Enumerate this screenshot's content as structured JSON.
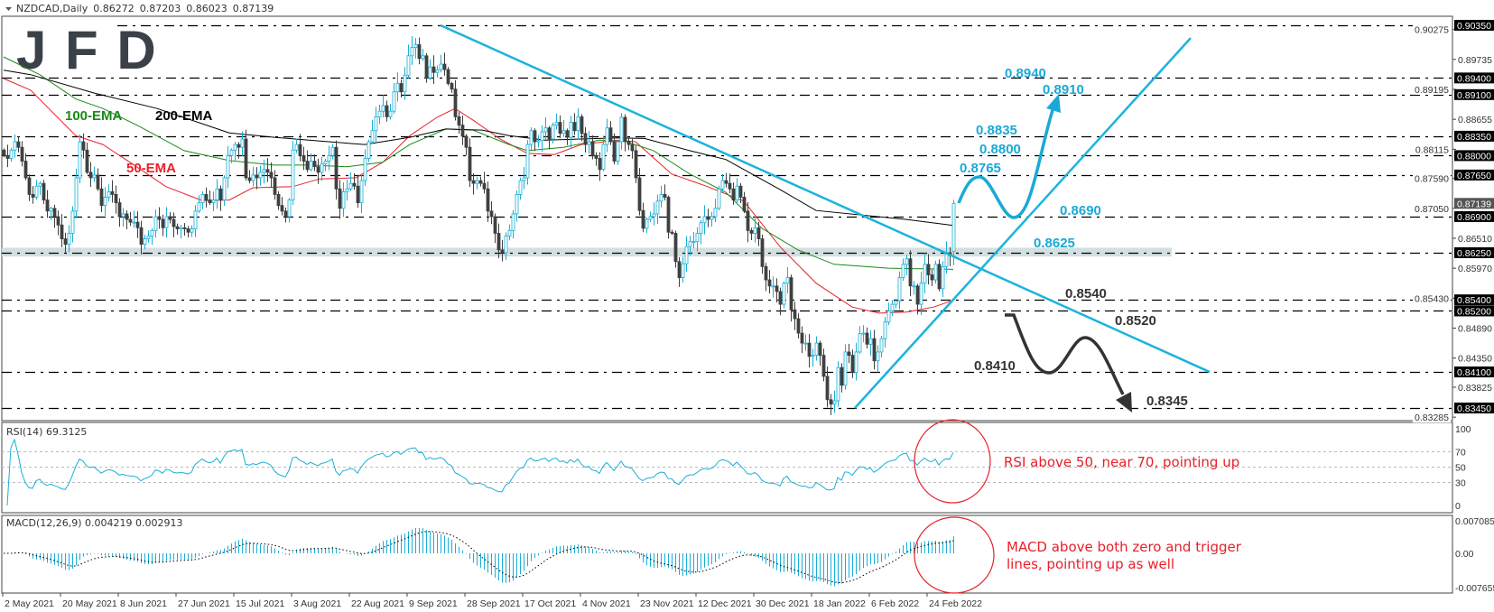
{
  "header": {
    "symbol": "NZDCAD,Daily",
    "open": "0.86272",
    "high": "0.87203",
    "low": "0.86023",
    "close": "0.87139"
  },
  "logo": "JFD",
  "colors": {
    "bull": "#1aafd6",
    "bear": "#404040",
    "trend": "#1cb3dd",
    "ema50": "#e8202a",
    "ema100": "#1a8a1a",
    "ema200": "#000000",
    "zone": "#d3dfe0",
    "note": "#e8202a",
    "annotation_up": "#1aa9d6",
    "annotation_down": "#333333"
  },
  "chart_data": [
    {
      "type": "candlestick",
      "title": "NZDCAD,Daily",
      "ylim": [
        0.83285,
        0.9035
      ],
      "x_tick_labels": [
        "2 May 2021",
        "20 May 2021",
        "8 Jun 2021",
        "27 Jun 2021",
        "15 Jul 2021",
        "3 Aug 2021",
        "22 Aug 2021",
        "9 Sep 2021",
        "28 Sep 2021",
        "17 Oct 2021",
        "4 Nov 2021",
        "23 Nov 2021",
        "12 Dec 2021",
        "30 Dec 2021",
        "18 Jan 2022",
        "6 Feb 2022",
        "24 Feb 2022"
      ],
      "y_tick_labels": [
        "0.90275",
        "0.89735",
        "0.89195",
        "0.88655",
        "0.88115",
        "0.87590",
        "0.87050",
        "0.86510",
        "0.85970",
        "0.85430",
        "0.84890",
        "0.84350",
        "0.83825",
        "0.83285"
      ],
      "levels": [
        "0.90350",
        "0.89400",
        "0.89100",
        "0.88350",
        "0.88000",
        "0.87650",
        "0.86900",
        "0.86250",
        "0.85400",
        "0.85200",
        "0.84100",
        "0.83450"
      ],
      "current_price": "0.87139",
      "last_candle": {
        "open": 0.86272,
        "high": 0.87203,
        "low": 0.86023,
        "close": 0.87139
      },
      "close": [
        0.88,
        0.8795,
        0.881,
        0.8825,
        0.8815,
        0.879,
        0.876,
        0.873,
        0.8725,
        0.8745,
        0.875,
        0.872,
        0.87,
        0.8705,
        0.869,
        0.8675,
        0.865,
        0.864,
        0.866,
        0.87,
        0.876,
        0.8825,
        0.881,
        0.877,
        0.876,
        0.8765,
        0.874,
        0.871,
        0.8725,
        0.8735,
        0.873,
        0.8715,
        0.869,
        0.8695,
        0.8685,
        0.868,
        0.868,
        0.867,
        0.864,
        0.865,
        0.8655,
        0.8665,
        0.869,
        0.8685,
        0.867,
        0.869,
        0.8685,
        0.8672,
        0.8668,
        0.867,
        0.8668,
        0.8662,
        0.8668,
        0.87,
        0.8715,
        0.873,
        0.872,
        0.8715,
        0.872,
        0.874,
        0.872,
        0.876,
        0.88,
        0.881,
        0.882,
        0.8815,
        0.883,
        0.876,
        0.8755,
        0.8765,
        0.876,
        0.877,
        0.8775,
        0.877,
        0.876,
        0.873,
        0.871,
        0.87,
        0.869,
        0.872,
        0.881,
        0.882,
        0.88,
        0.879,
        0.8775,
        0.879,
        0.878,
        0.877,
        0.8785,
        0.879,
        0.88,
        0.8815,
        0.874,
        0.8705,
        0.8735,
        0.874,
        0.875,
        0.8745,
        0.8715,
        0.8755,
        0.8795,
        0.8825,
        0.8845,
        0.887,
        0.888,
        0.889,
        0.887,
        0.888,
        0.8915,
        0.893,
        0.8915,
        0.8945,
        0.898,
        0.8995,
        0.9,
        0.8975,
        0.898,
        0.894,
        0.896,
        0.895,
        0.8955,
        0.8965,
        0.8955,
        0.893,
        0.892,
        0.887,
        0.8855,
        0.8835,
        0.8815,
        0.8755,
        0.875,
        0.8755,
        0.875,
        0.874,
        0.87,
        0.869,
        0.866,
        0.863,
        0.8625,
        0.8655,
        0.8665,
        0.8695,
        0.873,
        0.8755,
        0.876,
        0.882,
        0.8845,
        0.8825,
        0.8827,
        0.8843,
        0.885,
        0.883,
        0.8855,
        0.886,
        0.884,
        0.8845,
        0.8833,
        0.886,
        0.8845,
        0.887,
        0.884,
        0.882,
        0.8825,
        0.88,
        0.8795,
        0.8775,
        0.882,
        0.885,
        0.8825,
        0.879,
        0.8825,
        0.8869,
        0.8826,
        0.882,
        0.8809,
        0.876,
        0.8701,
        0.8669,
        0.8685,
        0.869,
        0.8695,
        0.8718,
        0.873,
        0.8725,
        0.8662,
        0.866,
        0.8609,
        0.858,
        0.8605,
        0.8636,
        0.8645,
        0.8645,
        0.866,
        0.8679,
        0.869,
        0.8685,
        0.869,
        0.8705,
        0.874,
        0.8755,
        0.875,
        0.874,
        0.872,
        0.8745,
        0.8725,
        0.87,
        0.8665,
        0.866,
        0.867,
        0.865,
        0.86,
        0.8576,
        0.8565,
        0.8565,
        0.8555,
        0.8532,
        0.857,
        0.858,
        0.8522,
        0.8506,
        0.848,
        0.8462,
        0.8462,
        0.8438,
        0.844,
        0.8462,
        0.844,
        0.8402,
        0.836,
        0.8352,
        0.8358,
        0.8418,
        0.8386,
        0.8446,
        0.844,
        0.8409,
        0.8446,
        0.8479,
        0.848,
        0.846,
        0.847,
        0.843,
        0.8446,
        0.847,
        0.85,
        0.852,
        0.8532,
        0.8538,
        0.858,
        0.8604,
        0.8614,
        0.8565,
        0.8565,
        0.8532,
        0.857,
        0.8604,
        0.8585,
        0.8576,
        0.8604,
        0.856,
        0.86,
        0.8625,
        0.862,
        0.87139
      ],
      "ema": [
        {
          "name": "50-EMA",
          "points": [
            [
              0,
              0.8939
            ],
            [
              7.5,
              0.8918
            ],
            [
              12.5,
              0.8885
            ],
            [
              20,
              0.8836
            ],
            [
              27.5,
              0.882
            ],
            [
              35,
              0.8788
            ],
            [
              45,
              0.8744
            ],
            [
              55,
              0.8719
            ],
            [
              62.5,
              0.872
            ],
            [
              69,
              0.8742
            ],
            [
              80,
              0.8744
            ],
            [
              87.5,
              0.8758
            ],
            [
              97.5,
              0.876
            ],
            [
              105,
              0.8788
            ],
            [
              112.5,
              0.8836
            ],
            [
              120,
              0.8869
            ],
            [
              125,
              0.8885
            ],
            [
              130,
              0.8864
            ],
            [
              137.5,
              0.883
            ],
            [
              145,
              0.8804
            ],
            [
              152.5,
              0.8802
            ],
            [
              160,
              0.882
            ],
            [
              170,
              0.8828
            ],
            [
              175,
              0.8825
            ],
            [
              185,
              0.8767
            ],
            [
              195,
              0.8744
            ],
            [
              205,
              0.8718
            ],
            [
              215,
              0.8636
            ],
            [
              225,
              0.857
            ],
            [
              235,
              0.8527
            ],
            [
              242.5,
              0.8516
            ],
            [
              250,
              0.8518
            ],
            [
              257.5,
              0.8527
            ],
            [
              263,
              0.8539
            ]
          ]
        },
        {
          "name": "100-EMA",
          "points": [
            [
              0,
              0.8978
            ],
            [
              10,
              0.8946
            ],
            [
              20,
              0.8902
            ],
            [
              27.5,
              0.8885
            ],
            [
              37.5,
              0.8853
            ],
            [
              50,
              0.8809
            ],
            [
              62.5,
              0.8791
            ],
            [
              75,
              0.8783
            ],
            [
              85,
              0.8783
            ],
            [
              95,
              0.878
            ],
            [
              105,
              0.8788
            ],
            [
              112.5,
              0.882
            ],
            [
              122.5,
              0.8848
            ],
            [
              130,
              0.8846
            ],
            [
              140,
              0.882
            ],
            [
              145,
              0.8809
            ],
            [
              155,
              0.8815
            ],
            [
              165,
              0.8828
            ],
            [
              172.5,
              0.8825
            ],
            [
              180,
              0.8809
            ],
            [
              190,
              0.8767
            ],
            [
              200,
              0.8734
            ],
            [
              210,
              0.8669
            ],
            [
              220,
              0.863
            ],
            [
              230,
              0.8604
            ],
            [
              245,
              0.8597
            ],
            [
              263,
              0.8595
            ]
          ]
        },
        {
          "name": "200-EMA",
          "points": [
            [
              0,
              0.8954
            ],
            [
              7.5,
              0.8946
            ],
            [
              25,
              0.8913
            ],
            [
              42.5,
              0.8885
            ],
            [
              62.5,
              0.8841
            ],
            [
              75,
              0.8833
            ],
            [
              90,
              0.8825
            ],
            [
              100,
              0.882
            ],
            [
              112.5,
              0.8833
            ],
            [
              122.5,
              0.8848
            ],
            [
              132.5,
              0.8846
            ],
            [
              140,
              0.8836
            ],
            [
              150,
              0.8828
            ],
            [
              160,
              0.883
            ],
            [
              170,
              0.8832
            ],
            [
              177.5,
              0.8831
            ],
            [
              190,
              0.8809
            ],
            [
              200,
              0.8793
            ],
            [
              215,
              0.8739
            ],
            [
              225,
              0.8701
            ],
            [
              250,
              0.8685
            ],
            [
              263,
              0.8674
            ]
          ]
        }
      ],
      "trendlines": [
        {
          "from": {
            "index": 121,
            "price": 0.9035
          },
          "to": {
            "index": 334,
            "price": 0.841
          }
        },
        {
          "from": {
            "index": 235.75,
            "price": 0.8345
          },
          "to": {
            "index": 328.75,
            "price": 0.9012
          }
        }
      ],
      "zone": {
        "from_price": 0.8618,
        "to_price": 0.8634,
        "to_index": 323.5
      },
      "ema_labels": {
        "ema100": "100-EMA",
        "ema200": "200-EMA",
        "ema50": "50-EMA"
      },
      "upside_labels": [
        "0.8940",
        "0.8910",
        "0.8835",
        "0.8800",
        "0.8765",
        "0.8690",
        "0.8625"
      ],
      "downside_labels": [
        "0.8540",
        "0.8520",
        "0.8410",
        "0.8345"
      ]
    },
    {
      "type": "line",
      "title": "RSI(14) 69.3125",
      "ylim": [
        0,
        100
      ],
      "y_tick_labels": [
        "100",
        "70",
        "50",
        "30",
        "0"
      ],
      "levels": [
        70,
        50,
        30
      ],
      "last_value": 69.3125
    },
    {
      "type": "bar",
      "title": "MACD(12,26,9) 0.004219 0.002913",
      "ylim": [
        -0.007655,
        0.007085
      ],
      "y_tick_labels": [
        "0.007085",
        "0.00",
        "-0.007655"
      ],
      "params": [
        12,
        26,
        9
      ],
      "last_macd": 0.004219,
      "last_signal": 0.002913
    }
  ],
  "notes": {
    "rsi": "RSI above 50, near 70, pointing up",
    "macd_line1": "MACD above both zero and trigger",
    "macd_line2": "lines, pointing up as well"
  }
}
